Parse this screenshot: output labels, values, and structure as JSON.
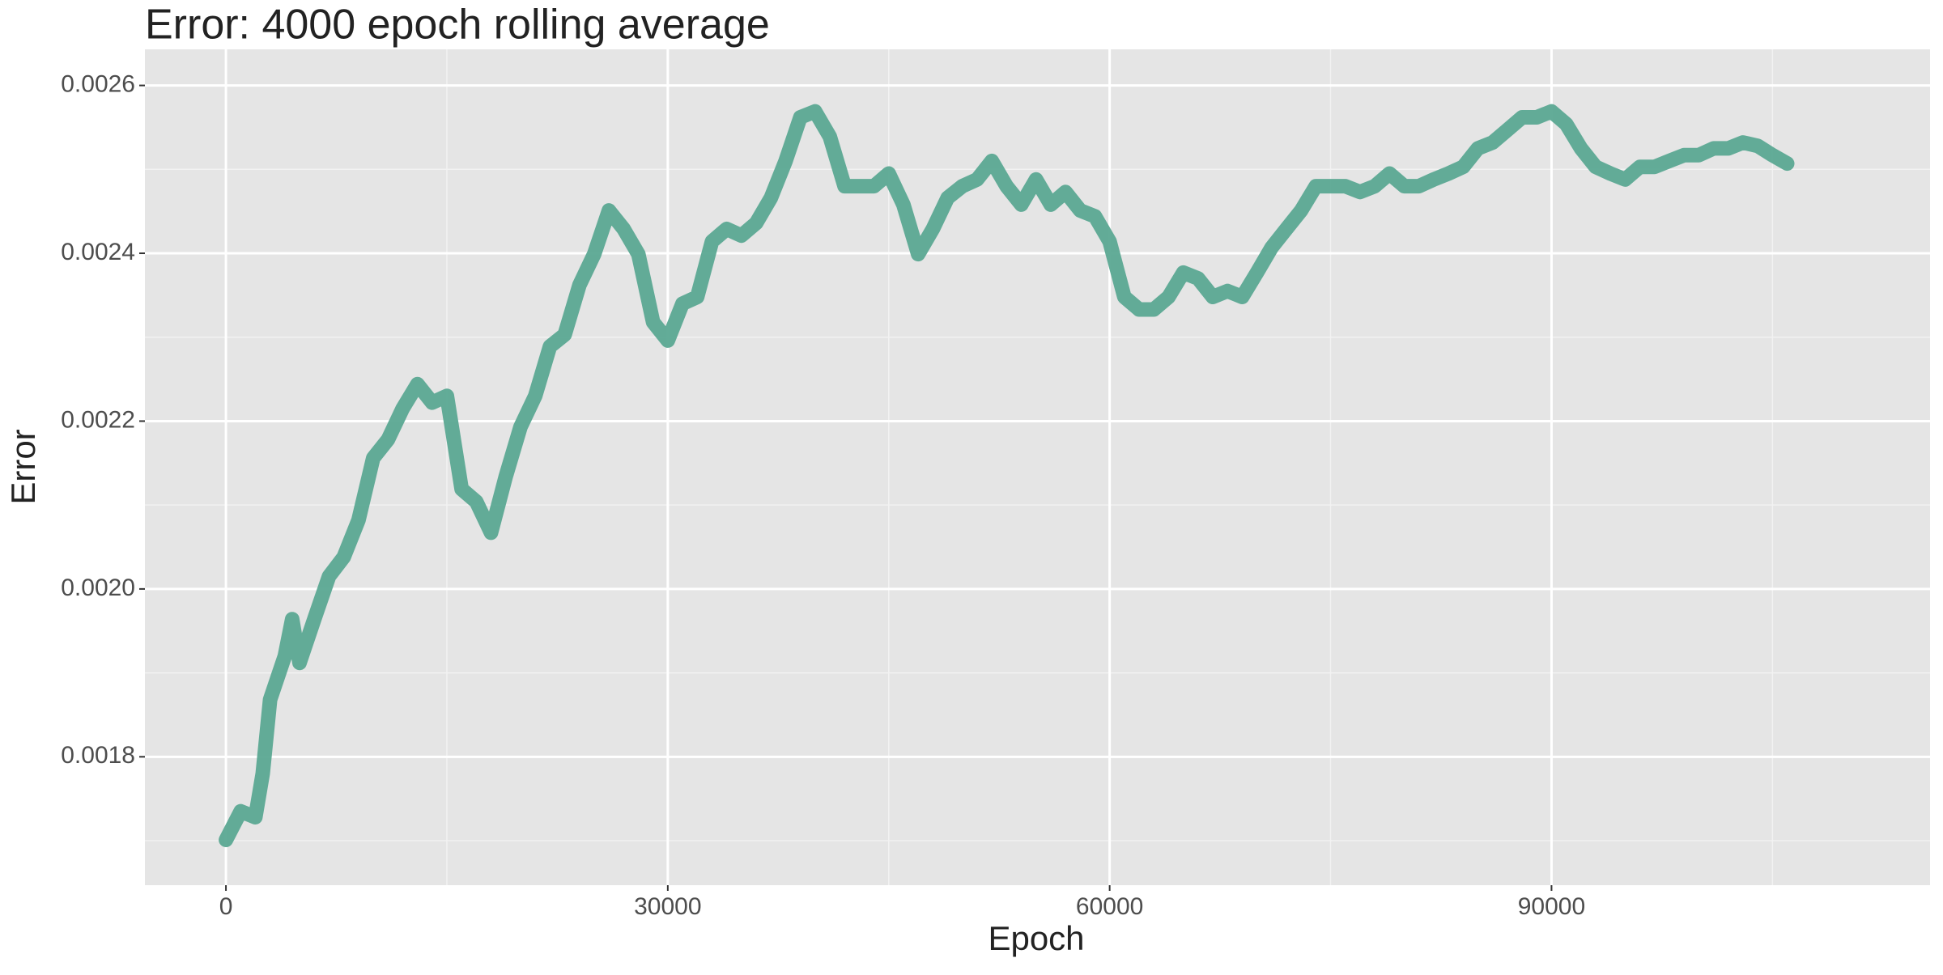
{
  "chart_data": {
    "type": "line",
    "title": "Error: 4000 epoch rolling average",
    "x_label": "Epoch",
    "y_label": "Error",
    "x": [
      0,
      1000,
      2000,
      2500,
      3000,
      4000,
      4500,
      5000,
      6000,
      7000,
      8000,
      9000,
      10000,
      11000,
      12000,
      13000,
      14000,
      15000,
      16000,
      17000,
      18000,
      19000,
      20000,
      21000,
      22000,
      23000,
      24000,
      25000,
      26000,
      27000,
      28000,
      29000,
      30000,
      31000,
      32000,
      33000,
      34000,
      35000,
      36000,
      37000,
      38000,
      39000,
      40000,
      41000,
      42000,
      43000,
      44000,
      45000,
      46000,
      47000,
      48000,
      49000,
      50000,
      51000,
      52000,
      53000,
      54000,
      55000,
      56000,
      57000,
      58000,
      59000,
      60000,
      61000,
      62000,
      63000,
      64000,
      65000,
      66000,
      67000,
      68000,
      69000,
      70000,
      71000,
      72000,
      73000,
      74000,
      75000,
      76000,
      77000,
      78000,
      79000,
      80000,
      81000,
      82000,
      83000,
      84000,
      85000,
      86000,
      87000,
      88000,
      89000,
      90000,
      91000,
      92000,
      93000,
      94000,
      95000,
      96000,
      97000,
      98000,
      99000,
      100000,
      101000,
      102000,
      103000,
      104000,
      105000,
      106000
    ],
    "series": [
      {
        "color": "#5ba892",
        "values": [
          0.001701,
          0.001735,
          0.001728,
          0.00178,
          0.001868,
          0.00192,
          0.001964,
          0.001912,
          0.001964,
          0.002015,
          0.002038,
          0.002082,
          0.002156,
          0.002178,
          0.002215,
          0.002244,
          0.002222,
          0.00223,
          0.002119,
          0.002104,
          0.002067,
          0.002134,
          0.002193,
          0.00223,
          0.002289,
          0.002303,
          0.002362,
          0.002399,
          0.002451,
          0.002429,
          0.002399,
          0.002318,
          0.002296,
          0.00234,
          0.002348,
          0.002414,
          0.002429,
          0.002421,
          0.002436,
          0.002466,
          0.00251,
          0.002562,
          0.002569,
          0.002539,
          0.00248,
          0.00248,
          0.00248,
          0.002495,
          0.002458,
          0.002399,
          0.002429,
          0.002466,
          0.00248,
          0.002488,
          0.00251,
          0.00248,
          0.002458,
          0.002488,
          0.002458,
          0.002473,
          0.002451,
          0.002444,
          0.002414,
          0.002348,
          0.002333,
          0.002333,
          0.002348,
          0.002377,
          0.00237,
          0.002348,
          0.002355,
          0.002348,
          0.002377,
          0.002407,
          0.002429,
          0.002451,
          0.00248,
          0.00248,
          0.00248,
          0.002473,
          0.00248,
          0.002495,
          0.00248,
          0.00248,
          0.002488,
          0.002495,
          0.002503,
          0.002525,
          0.002532,
          0.002547,
          0.002562,
          0.002562,
          0.002569,
          0.002554,
          0.002525,
          0.002503,
          0.002495,
          0.002488,
          0.002503,
          0.002503,
          0.00251,
          0.002517,
          0.002517,
          0.002525,
          0.002525,
          0.002532,
          0.002528,
          0.002517,
          0.002507
        ]
      }
    ],
    "xlim": [
      -5500,
      115700
    ],
    "ylim": [
      0.001647,
      0.002643
    ],
    "xticks": [
      0,
      30000,
      60000,
      90000
    ],
    "yticks": [
      0.0018,
      {
        "value": 0.002,
        "label": "0.0020"
      },
      0.0022,
      0.0024,
      0.0026
    ],
    "xticks_minor": [
      15000,
      45000,
      75000,
      105000
    ],
    "yticks_minor": [
      0.0017,
      0.0019,
      0.0021,
      0.0023,
      0.0025
    ],
    "grid": true
  }
}
